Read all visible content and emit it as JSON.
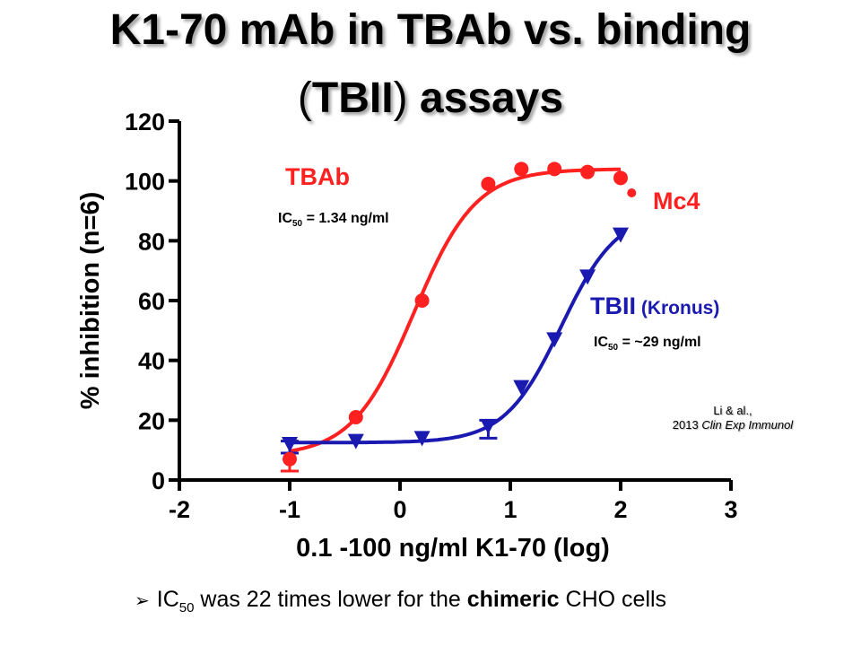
{
  "title": {
    "line1": "K1-70 mAb in TBAb vs. binding",
    "line2_paren_open": "(",
    "line2_bold": "TBII",
    "line2_paren_close": ")",
    "line2_rest": " assays"
  },
  "chart_data": {
    "type": "scatter",
    "xlabel": "0.1 -100 ng/ml K1-70 (log)",
    "ylabel": "% inhibition (n=6)",
    "xlim": [
      -2,
      3
    ],
    "ylim": [
      0,
      120
    ],
    "xticks": [
      -2,
      -1,
      0,
      1,
      2,
      3
    ],
    "yticks": [
      0,
      20,
      40,
      60,
      80,
      100,
      120
    ],
    "grid": false,
    "series": [
      {
        "name": "TBAb",
        "marker": "circle",
        "color": "#ff2020",
        "x": [
          -1,
          -0.4,
          0.2,
          0.8,
          1.1,
          1.4,
          1.7,
          2.0,
          2.1
        ],
        "y": [
          7,
          21,
          60,
          99,
          104,
          104,
          103,
          101,
          96
        ],
        "error_low": [
          3,
          21,
          60,
          99,
          104,
          104,
          103,
          101,
          96
        ],
        "error_high": [
          9,
          21,
          60,
          99,
          104,
          104,
          103,
          101,
          96
        ],
        "fit": {
          "bottom": 8,
          "top": 104,
          "log_ic50": 0.127,
          "hill": 1.55
        },
        "fit_xrange": [
          -1,
          2
        ]
      },
      {
        "name": "TBII",
        "marker": "triangle-down",
        "color": "#1a1ab0",
        "x": [
          -1,
          -0.4,
          0.2,
          0.8,
          1.1,
          1.4,
          1.7,
          2.0
        ],
        "y": [
          12,
          13,
          14,
          18,
          31,
          47,
          68,
          82
        ],
        "error_low": [
          9,
          13,
          14,
          14,
          31,
          47,
          68,
          82
        ],
        "error_high": [
          13,
          13,
          14,
          20,
          31,
          47,
          68,
          82
        ],
        "fit": {
          "bottom": 12.5,
          "top": 90,
          "log_ic50": 1.46,
          "hill": 1.7
        },
        "fit_xrange": [
          -1,
          2
        ]
      }
    ],
    "annotations": {
      "tbab_label": "TBAb",
      "tbab_ic50_prefix": "IC",
      "tbab_ic50_sub": "50",
      "tbab_ic50_value": " = 1.34 ng/ml",
      "mc4_label": "Mc4",
      "tbii_label": "TBII",
      "tbii_label_extra": " (Kronus)",
      "tbii_ic50_prefix": "IC",
      "tbii_ic50_sub": "50",
      "tbii_ic50_value": " = ~29 ng/ml",
      "citation_line1": "Li & al.,",
      "citation_year": "2013 ",
      "citation_journal": "Clin Exp Immunol"
    }
  },
  "bullet": {
    "prefix": "IC",
    "sub": "50",
    "text1": " was 22 times lower for the ",
    "bold": "chimeric",
    "text2": " CHO cells"
  },
  "colors": {
    "tbab": "#ff2020",
    "tbii": "#1a1ab0",
    "axis": "#000000"
  }
}
